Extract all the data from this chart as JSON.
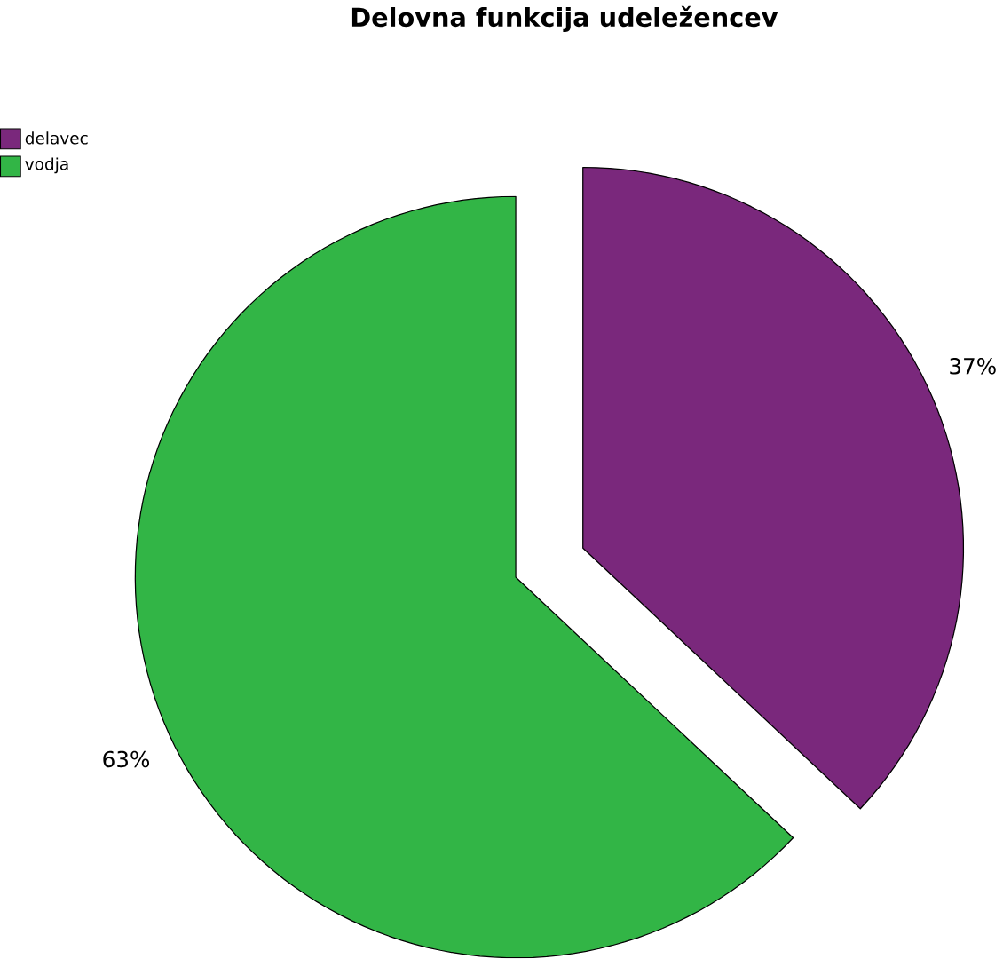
{
  "chart_data": {
    "type": "pie",
    "title": "Delovna funkcija udeležencev",
    "categories": [
      "delavec",
      "vodja"
    ],
    "values": [
      37,
      63
    ],
    "colors": [
      "#7a287c",
      "#32b546"
    ],
    "value_labels": [
      "37%",
      "63%"
    ],
    "legend": "top left"
  }
}
